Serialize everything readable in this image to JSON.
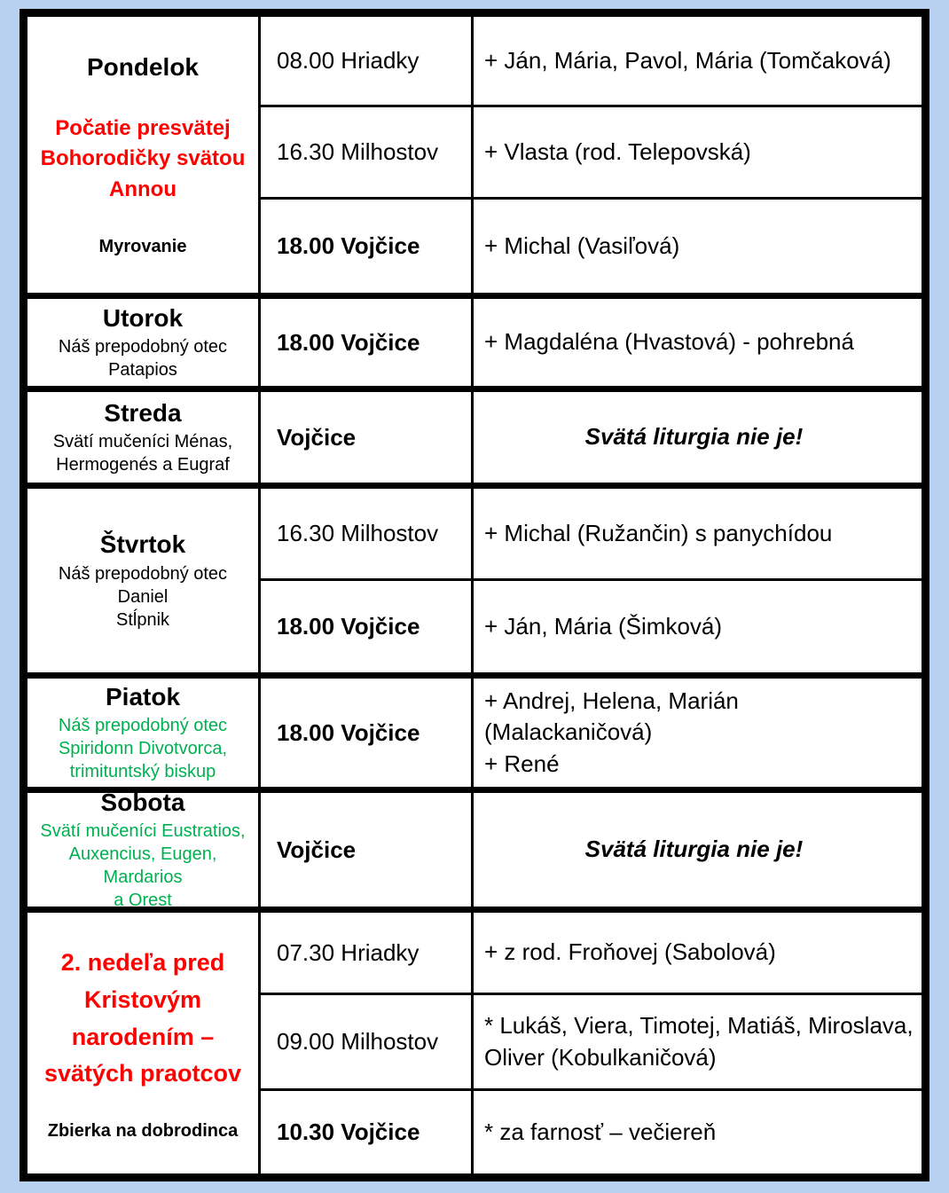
{
  "colors": {
    "page_bg": "#b8d1f0",
    "feast_red": "#ff0000",
    "feast_green": "#00b050",
    "text": "#000000"
  },
  "table": {
    "groups": [
      {
        "day": "Pondelok",
        "feast": "Počatie presvätej\nBohorodičky svätou\nAnnou",
        "note": "Myrovanie",
        "rows": [
          {
            "time": "08.00 Hriadky",
            "intention": "+ Ján, Mária, Pavol, Mária (Tomčaková)"
          },
          {
            "time": "16.30 Milhostov",
            "intention": "+ Vlasta (rod. Telepovská)"
          },
          {
            "time": "18.00 Vojčice",
            "intention": "+ Michal (Vasiľová)"
          }
        ]
      },
      {
        "day": "Utorok",
        "feast": "Náš prepodobný otec\nPatapios",
        "rows": [
          {
            "time": "18.00 Vojčice",
            "intention": "+ Magdaléna (Hvastová) - pohrebná"
          }
        ]
      },
      {
        "day": "Streda",
        "feast": "Svätí mučeníci Ménas,\nHermogenés a Eugraf",
        "rows": [
          {
            "time": "Vojčice",
            "intention": "Svätá liturgia nie je!"
          }
        ]
      },
      {
        "day": "Štvrtok",
        "feast": "Náš prepodobný otec Daniel\nStĺpnik",
        "rows": [
          {
            "time": "16.30 Milhostov",
            "intention": "+ Michal (Ružančin) s panychídou"
          },
          {
            "time": "18.00 Vojčice",
            "intention": "+ Ján, Mária (Šimková)"
          }
        ]
      },
      {
        "day": "Piatok",
        "feast": "Náš prepodobný otec\nSpiridonn Divotvorca,\ntrimituntský biskup",
        "rows": [
          {
            "time": "18.00 Vojčice",
            "intention": "+ Andrej, Helena, Marián\n(Malackaničová)\n+ René"
          }
        ]
      },
      {
        "day": "Sobota",
        "feast": "Svätí mučeníci Eustratios,\nAuxencius, Eugen, Mardarios\na Orest",
        "rows": [
          {
            "time": "Vojčice",
            "intention": "Svätá liturgia nie je!"
          }
        ]
      },
      {
        "day": "2. nedeľa pred\nKristovým\nnarodením –\nsvätých praotcov",
        "note": "Zbierka na dobrodinca",
        "rows": [
          {
            "time": "07.30 Hriadky",
            "intention": "+ z rod. Froňovej (Sabolová)"
          },
          {
            "time": "09.00 Milhostov",
            "intention": "* Lukáš, Viera, Timotej, Matiáš, Miroslava, Oliver (Kobulkaničová)"
          },
          {
            "time": "10.30 Vojčice",
            "intention": "* za farnosť – večiereň"
          }
        ]
      }
    ]
  }
}
